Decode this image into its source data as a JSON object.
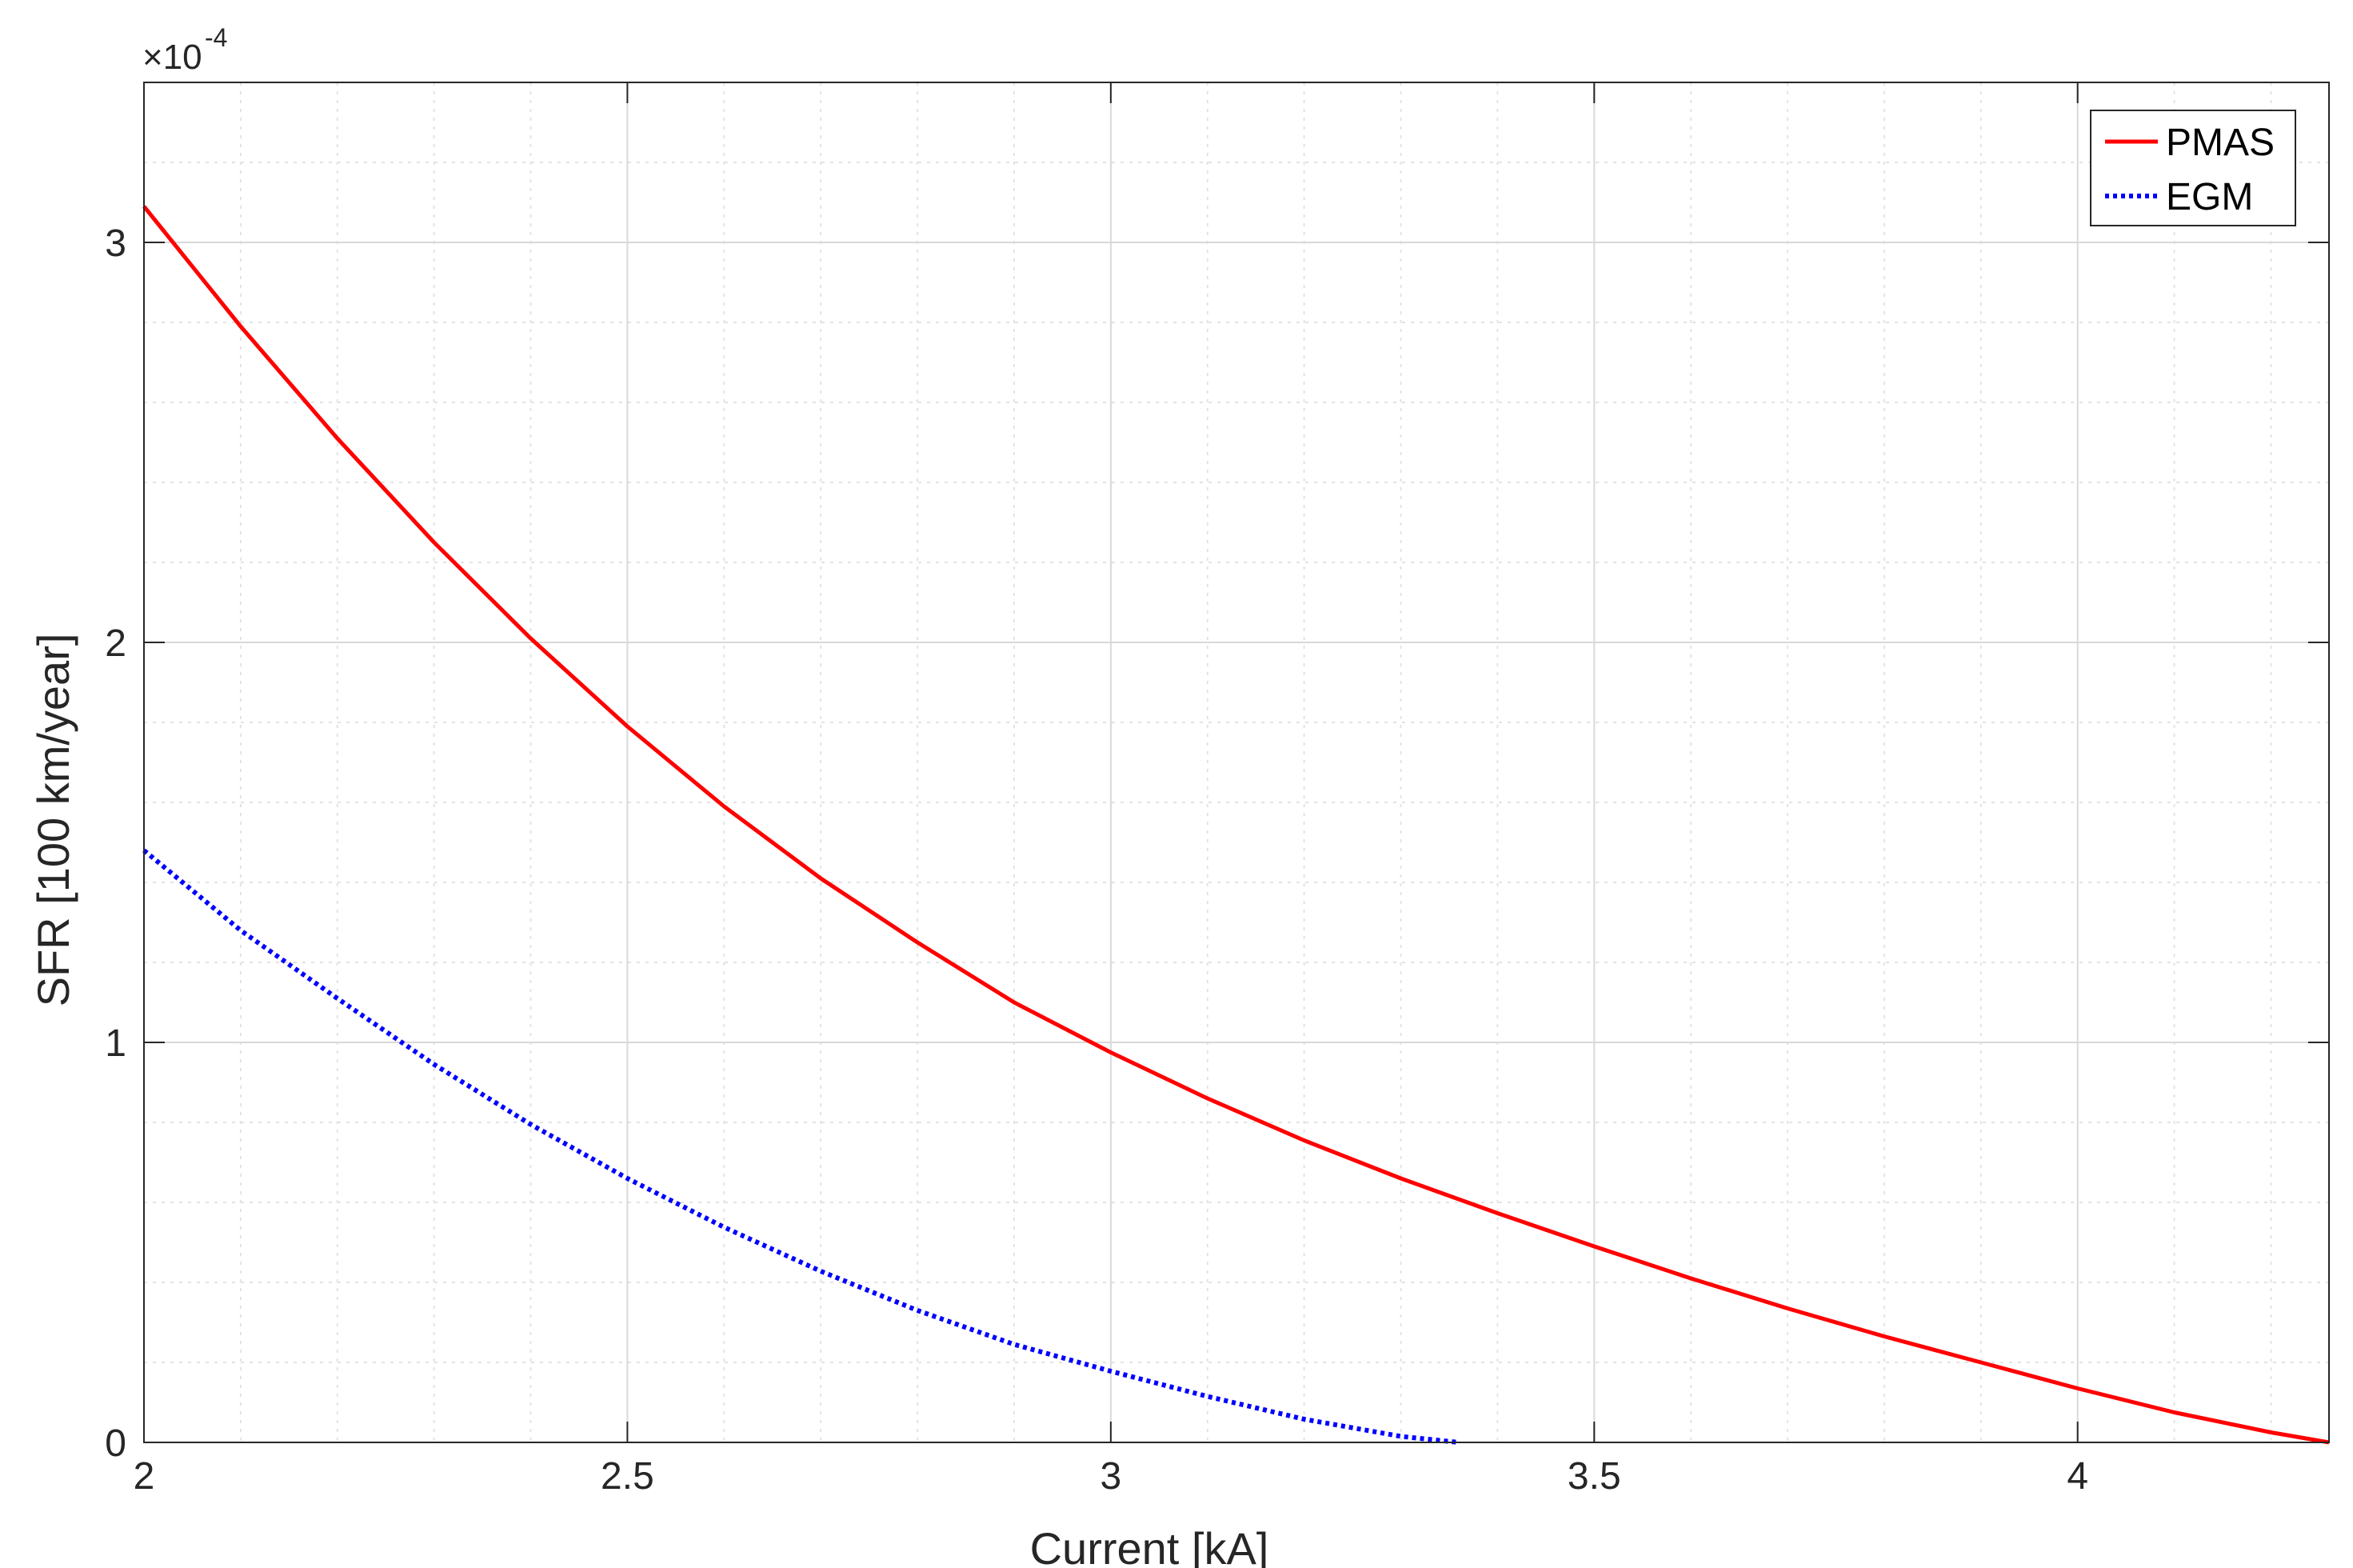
{
  "chart_data": {
    "type": "line",
    "xlabel": "Current [kA]",
    "ylabel": "SFR [100 km/year]",
    "exponent": {
      "base": "×10",
      "power": "-4"
    },
    "xlim": [
      2,
      4.26
    ],
    "ylim": [
      0,
      0.00034
    ],
    "xticks": [
      2,
      2.5,
      3,
      3.5,
      4
    ],
    "xtick_labels": [
      "2",
      "2.5",
      "3",
      "3.5",
      "4"
    ],
    "yticks": [
      0,
      0.0001,
      0.0002,
      0.0003
    ],
    "ytick_labels": [
      "0",
      "1",
      "2",
      "3"
    ],
    "grid": true,
    "minor_grid": true,
    "legend_position": "top-right",
    "series": [
      {
        "name": "PMAS",
        "color": "#ff0000",
        "style": "solid",
        "x": [
          2.0,
          2.1,
          2.2,
          2.3,
          2.4,
          2.5,
          2.6,
          2.7,
          2.8,
          2.9,
          3.0,
          3.1,
          3.2,
          3.3,
          3.4,
          3.5,
          3.6,
          3.7,
          3.8,
          3.9,
          4.0,
          4.1,
          4.2,
          4.26
        ],
        "y": [
          0.000309,
          0.000279,
          0.000251,
          0.000225,
          0.000201,
          0.000179,
          0.000159,
          0.000141,
          0.000125,
          0.00011,
          9.75e-05,
          8.6e-05,
          7.55e-05,
          6.6e-05,
          5.73e-05,
          4.9e-05,
          4.1e-05,
          3.35e-05,
          2.65e-05,
          2e-05,
          1.35e-05,
          7.5e-06,
          2.5e-06,
          0.0
        ]
      },
      {
        "name": "EGM",
        "color": "#0000ff",
        "style": "dotted",
        "x": [
          2.0,
          2.1,
          2.2,
          2.3,
          2.4,
          2.5,
          2.6,
          2.7,
          2.8,
          2.9,
          3.0,
          3.1,
          3.2,
          3.3,
          3.36
        ],
        "y": [
          0.000148,
          0.000128,
          0.000111,
          9.45e-05,
          7.95e-05,
          6.6e-05,
          5.38e-05,
          4.28e-05,
          3.3e-05,
          2.45e-05,
          1.78e-05,
          1.15e-05,
          5.8e-06,
          1.5e-06,
          0.0
        ]
      }
    ]
  }
}
